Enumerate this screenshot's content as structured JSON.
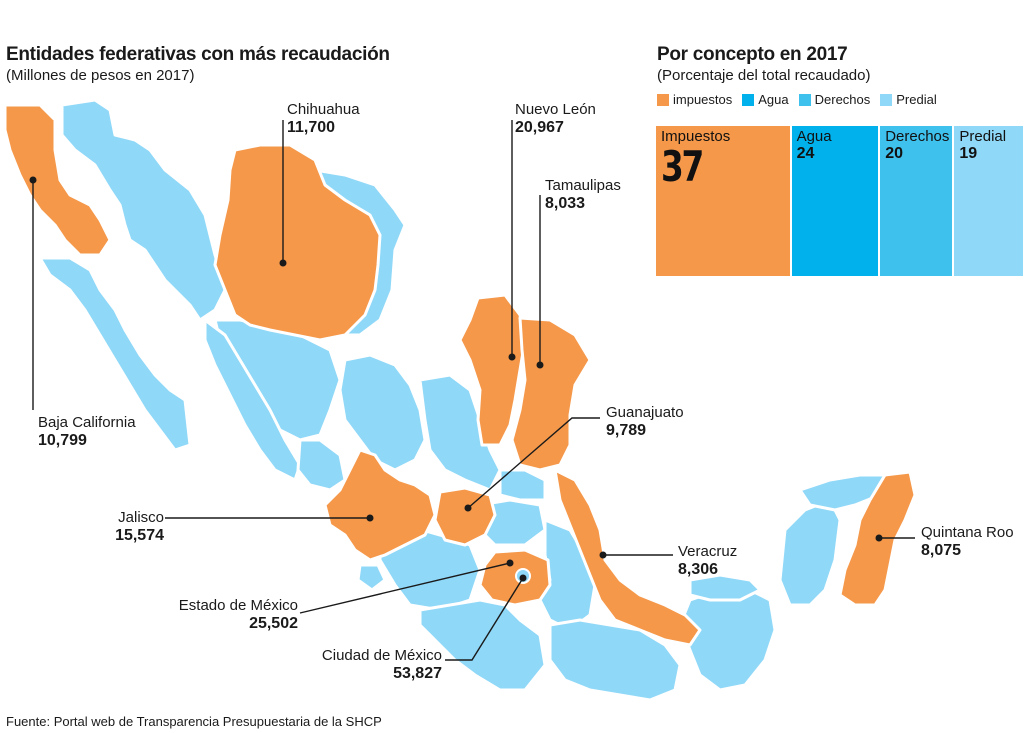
{
  "header": {
    "title": "Entidades federativas con más recaudación",
    "subtitle": "(Millones de pesos en 2017)"
  },
  "concept": {
    "title": "Por concepto en 2017",
    "subtitle": "(Porcentaje del total recaudado)",
    "legend": [
      {
        "label": "impuestos",
        "color": "#f5984a"
      },
      {
        "label": "Agua",
        "color": "#00b1eb"
      },
      {
        "label": "Derechos",
        "color": "#3fc1ee"
      },
      {
        "label": "Predial",
        "color": "#8fd8f8"
      }
    ]
  },
  "chart_data": [
    {
      "type": "table",
      "title": "Entidades federativas con más recaudación",
      "subtitle": "(Millones de pesos en 2017)",
      "categories": [
        "Baja California",
        "Chihuahua",
        "Nuevo León",
        "Tamaulipas",
        "Guanajuato",
        "Jalisco",
        "Veracruz",
        "Quintana Roo",
        "Estado de México",
        "Ciudad de México"
      ],
      "values": [
        10799,
        11700,
        20967,
        8033,
        9789,
        15574,
        8306,
        8075,
        25502,
        53827
      ],
      "value_labels": [
        "10,799",
        "11,700",
        "20,967",
        "8,033",
        "9,789",
        "15,574",
        "8,306",
        "8,075",
        "25,502",
        "53,827"
      ]
    },
    {
      "type": "bar",
      "title": "Por concepto en 2017",
      "subtitle": "(Porcentaje del total recaudado)",
      "categories": [
        "Impuestos",
        "Agua",
        "Derechos",
        "Predial"
      ],
      "values": [
        37,
        24,
        20,
        19
      ],
      "colors": [
        "#f5984a",
        "#00b1eb",
        "#3fc1ee",
        "#8fd8f8"
      ]
    }
  ],
  "map_colors": {
    "highlight": "#f5984a",
    "base": "#8fd8f8"
  },
  "footer": {
    "source": "Fuente: Portal web de Transparencia Presupuestaria de la SHCP"
  }
}
